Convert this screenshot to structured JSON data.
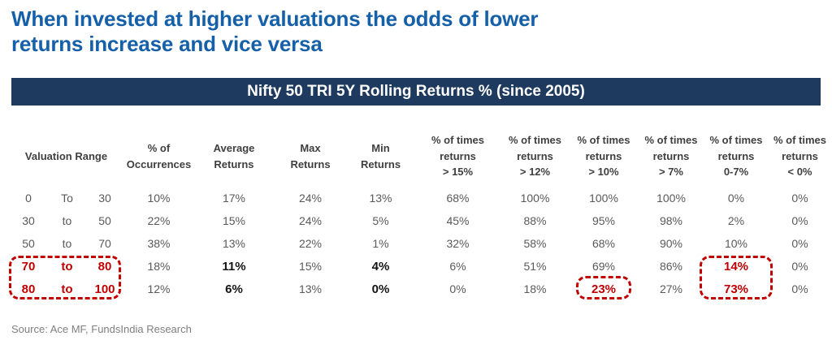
{
  "page": {
    "title_line1": "When invested at higher valuations the odds of lower",
    "title_line2": "returns increase and vice versa",
    "banner": "Nifty 50 TRI 5Y Rolling Returns % (since 2005)",
    "source": "Source: Ace MF, FundsIndia Research"
  },
  "colors": {
    "title_blue": "#1560a9",
    "banner_navy": "#1e3a5f",
    "highlight_red": "#c00000",
    "data_gray": "#595959",
    "header_gray": "#3f3f3f"
  },
  "table_headers": {
    "valuation": "Valuation Range",
    "occurrences": "% of\nOccurrences",
    "average": "Average\nReturns",
    "max": "Max\nReturns",
    "min": "Min\nReturns",
    "gt15": "% of times\nreturns\n> 15%",
    "gt12": "% of times\nreturns\n> 12%",
    "gt10": "% of times\nreturns\n> 10%",
    "gt7": "% of times\nreturns\n> 7%",
    "r0to7": "% of times\nreturns\n0-7%",
    "lt0": "% of times\nreturns\n< 0%"
  },
  "chart_data": {
    "type": "table",
    "title": "Nifty 50 TRI 5Y Rolling Returns % (since 2005)",
    "columns": [
      "Valuation Range",
      "% of Occurrences",
      "Average Returns",
      "Max Returns",
      "Min Returns",
      "% of times returns > 15%",
      "% of times returns > 12%",
      "% of times returns > 10%",
      "% of times returns > 7%",
      "% of times returns 0-7%",
      "% of times returns < 0%"
    ],
    "rows": [
      {
        "from": "0",
        "connector": "To",
        "to": "30",
        "occurrences": "10%",
        "average": "17%",
        "max": "24%",
        "min": "13%",
        "gt15": "68%",
        "gt12": "100%",
        "gt10": "100%",
        "gt7": "100%",
        "r0to7": "0%",
        "lt0": "0%"
      },
      {
        "from": "30",
        "connector": "to",
        "to": "50",
        "occurrences": "22%",
        "average": "15%",
        "max": "24%",
        "min": "5%",
        "gt15": "45%",
        "gt12": "88%",
        "gt10": "95%",
        "gt7": "98%",
        "r0to7": "2%",
        "lt0": "0%"
      },
      {
        "from": "50",
        "connector": "to",
        "to": "70",
        "occurrences": "38%",
        "average": "13%",
        "max": "22%",
        "min": "1%",
        "gt15": "32%",
        "gt12": "58%",
        "gt10": "68%",
        "gt7": "90%",
        "r0to7": "10%",
        "lt0": "0%"
      },
      {
        "from": "70",
        "connector": "to",
        "to": "80",
        "occurrences": "18%",
        "average": "11%",
        "max": "15%",
        "min": "4%",
        "gt15": "6%",
        "gt12": "51%",
        "gt10": "69%",
        "gt7": "86%",
        "r0to7": "14%",
        "lt0": "0%"
      },
      {
        "from": "80",
        "connector": "to",
        "to": "100",
        "occurrences": "12%",
        "average": "6%",
        "max": "13%",
        "min": "0%",
        "gt15": "0%",
        "gt12": "18%",
        "gt10": "23%",
        "gt7": "27%",
        "r0to7": "73%",
        "lt0": "0%"
      }
    ],
    "highlights": [
      "red dashed box around valuation ranges 70 to 80 and 80 to 100",
      "red dashed box around 23% (% of times returns > 10%, range 80-100)",
      "red dashed box around 14% and 73% (% of times returns 0-7%, ranges 70-80 and 80-100)"
    ]
  }
}
